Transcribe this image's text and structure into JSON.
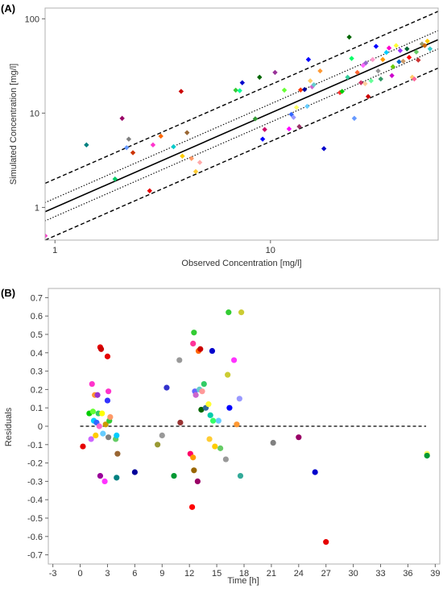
{
  "chart_data": [
    {
      "type": "scatter",
      "panel_label": "(A)",
      "xlabel": "Observed Concentration [mg/l]",
      "ylabel": "Simulated Concentration [mg/l]",
      "xscale": "log",
      "yscale": "log",
      "xlim": [
        0.9,
        60
      ],
      "ylim": [
        0.45,
        130
      ],
      "xtick_labels": [
        "1",
        "10"
      ],
      "ytick_labels": [
        "1",
        "10",
        "100"
      ],
      "xticks": [
        1,
        10
      ],
      "yticks": [
        1,
        10,
        100
      ],
      "grid": false,
      "reference_lines": [
        {
          "type": "identity",
          "factor": 1,
          "style": "solid"
        },
        {
          "type": "fold",
          "factor": 1.25,
          "style": "dotted"
        },
        {
          "type": "fold",
          "factor": 0.8,
          "style": "dotted"
        },
        {
          "type": "fold",
          "factor": 2,
          "style": "dashed"
        },
        {
          "type": "fold",
          "factor": 0.5,
          "style": "dashed"
        }
      ],
      "points": [
        {
          "x": 1.4,
          "y": 4.6,
          "color": "#008080"
        },
        {
          "x": 1.9,
          "y": 2.0,
          "color": "#00cc66"
        },
        {
          "x": 2.05,
          "y": 8.8,
          "color": "#990066"
        },
        {
          "x": 2.15,
          "y": 4.3,
          "color": "#6699ff"
        },
        {
          "x": 2.2,
          "y": 5.3,
          "color": "#808080"
        },
        {
          "x": 2.3,
          "y": 3.8,
          "color": "#cc3300"
        },
        {
          "x": 2.75,
          "y": 1.5,
          "color": "#e60000"
        },
        {
          "x": 2.85,
          "y": 4.6,
          "color": "#ff33cc"
        },
        {
          "x": 3.1,
          "y": 5.7,
          "color": "#ff6600"
        },
        {
          "x": 3.55,
          "y": 4.4,
          "color": "#00cccc"
        },
        {
          "x": 3.85,
          "y": 17.0,
          "color": "#cc0000"
        },
        {
          "x": 3.9,
          "y": 3.5,
          "color": "#ffcc00"
        },
        {
          "x": 4.1,
          "y": 6.2,
          "color": "#996633"
        },
        {
          "x": 4.3,
          "y": 3.3,
          "color": "#ff9966"
        },
        {
          "x": 4.5,
          "y": 2.4,
          "color": "#ffcc33"
        },
        {
          "x": 4.7,
          "y": 3.0,
          "color": "#ffaaaa"
        },
        {
          "x": 6.9,
          "y": 17.5,
          "color": "#33cc33"
        },
        {
          "x": 7.2,
          "y": 17.3,
          "color": "#00ff99"
        },
        {
          "x": 7.4,
          "y": 21.0,
          "color": "#0000cc"
        },
        {
          "x": 8.5,
          "y": 8.7,
          "color": "#339933"
        },
        {
          "x": 8.9,
          "y": 24.0,
          "color": "#006600"
        },
        {
          "x": 9.2,
          "y": 5.3,
          "color": "#0000ff"
        },
        {
          "x": 9.4,
          "y": 6.7,
          "color": "#cc0066"
        },
        {
          "x": 10.5,
          "y": 27.0,
          "color": "#993399"
        },
        {
          "x": 11.6,
          "y": 17.5,
          "color": "#66ff33"
        },
        {
          "x": 12.2,
          "y": 6.8,
          "color": "#ff00ff"
        },
        {
          "x": 12.5,
          "y": 9.7,
          "color": "#3366ff"
        },
        {
          "x": 12.8,
          "y": 9.0,
          "color": "#9999ff"
        },
        {
          "x": 13.2,
          "y": 11.5,
          "color": "#ffff66"
        },
        {
          "x": 13.6,
          "y": 7.2,
          "color": "#993366"
        },
        {
          "x": 13.8,
          "y": 17.6,
          "color": "#ff3300"
        },
        {
          "x": 14.4,
          "y": 17.8,
          "color": "#000099"
        },
        {
          "x": 14.8,
          "y": 11.8,
          "color": "#66ccff"
        },
        {
          "x": 15.0,
          "y": 37.0,
          "color": "#0000ff"
        },
        {
          "x": 15.3,
          "y": 22.0,
          "color": "#ffcc66"
        },
        {
          "x": 15.6,
          "y": 19.0,
          "color": "#cc66cc"
        },
        {
          "x": 15.9,
          "y": 20.0,
          "color": "#66cccc"
        },
        {
          "x": 17.0,
          "y": 28.0,
          "color": "#ff9933"
        },
        {
          "x": 17.7,
          "y": 4.2,
          "color": "#0000cc"
        },
        {
          "x": 21.0,
          "y": 16.5,
          "color": "#ff3333"
        },
        {
          "x": 21.5,
          "y": 17.0,
          "color": "#00cc00"
        },
        {
          "x": 22.8,
          "y": 24.0,
          "color": "#33cc99"
        },
        {
          "x": 23.2,
          "y": 64.0,
          "color": "#006600"
        },
        {
          "x": 23.8,
          "y": 38.0,
          "color": "#00ff66"
        },
        {
          "x": 24.5,
          "y": 8.8,
          "color": "#6699ff"
        },
        {
          "x": 25.3,
          "y": 27.0,
          "color": "#ff6633"
        },
        {
          "x": 26.3,
          "y": 21.0,
          "color": "#cc3366"
        },
        {
          "x": 26.9,
          "y": 32.0,
          "color": "#ff66ff"
        },
        {
          "x": 27.5,
          "y": 20.5,
          "color": "#ffcc99"
        },
        {
          "x": 27.7,
          "y": 34.0,
          "color": "#9966cc"
        },
        {
          "x": 28.4,
          "y": 15.0,
          "color": "#cc0000"
        },
        {
          "x": 29.3,
          "y": 22.0,
          "color": "#66ff99"
        },
        {
          "x": 29.8,
          "y": 37.0,
          "color": "#ff99cc"
        },
        {
          "x": 30.9,
          "y": 51.0,
          "color": "#0000ff"
        },
        {
          "x": 31.6,
          "y": 28.0,
          "color": "#999999"
        },
        {
          "x": 32.5,
          "y": 23.0,
          "color": "#339966"
        },
        {
          "x": 33.2,
          "y": 37.0,
          "color": "#ff9900"
        },
        {
          "x": 34.5,
          "y": 44.0,
          "color": "#00ccff"
        },
        {
          "x": 35.5,
          "y": 49.0,
          "color": "#ff00cc"
        },
        {
          "x": 36.6,
          "y": 25.0,
          "color": "#cc00cc"
        },
        {
          "x": 37.0,
          "y": 31.0,
          "color": "#66cc00"
        },
        {
          "x": 38.3,
          "y": 52.0,
          "color": "#ffff33"
        },
        {
          "x": 39.5,
          "y": 35.0,
          "color": "#0066cc"
        },
        {
          "x": 40.0,
          "y": 46.0,
          "color": "#9933ff"
        },
        {
          "x": 41.3,
          "y": 35.5,
          "color": "#cc9966"
        },
        {
          "x": 43.0,
          "y": 48.0,
          "color": "#006633"
        },
        {
          "x": 44.0,
          "y": 39.0,
          "color": "#ff0000"
        },
        {
          "x": 45.5,
          "y": 24.0,
          "color": "#ffcc66"
        },
        {
          "x": 46.5,
          "y": 23.0,
          "color": "#ff6699"
        },
        {
          "x": 47.5,
          "y": 44.5,
          "color": "#66cc66"
        },
        {
          "x": 48.5,
          "y": 36.5,
          "color": "#cc3333"
        },
        {
          "x": 50.5,
          "y": 54.0,
          "color": "#999966"
        },
        {
          "x": 52.0,
          "y": 52.0,
          "color": "#cc6600"
        },
        {
          "x": 53.5,
          "y": 58.0,
          "color": "#ffcc00"
        },
        {
          "x": 55.0,
          "y": 48.0,
          "color": "#33cccc"
        },
        {
          "x": 0.9,
          "y": 0.5,
          "color": "#ff33cc"
        }
      ]
    },
    {
      "type": "scatter",
      "panel_label": "(B)",
      "xlabel": "Time [h]",
      "ylabel": "Residuals",
      "xlim": [
        -3.5,
        39.5
      ],
      "ylim": [
        -0.75,
        0.75
      ],
      "xtick_labels": [
        "-3",
        "0",
        "3",
        "6",
        "9",
        "12",
        "15",
        "18",
        "21",
        "24",
        "27",
        "30",
        "33",
        "36",
        "39"
      ],
      "ytick_labels": [
        "0.7",
        "0.6",
        "0.5",
        "0.4",
        "0.3",
        "0.2",
        "0.1",
        "0",
        "-0.1",
        "-0.2",
        "-0.3",
        "-0.4",
        "-0.5",
        "-0.6",
        "-0.7"
      ],
      "xticks": [
        -3,
        0,
        3,
        6,
        9,
        12,
        15,
        18,
        21,
        24,
        27,
        30,
        33,
        36,
        39
      ],
      "yticks": [
        0.7,
        0.6,
        0.5,
        0.4,
        0.3,
        0.2,
        0.1,
        0,
        -0.1,
        -0.2,
        -0.3,
        -0.4,
        -0.5,
        -0.6,
        -0.7
      ],
      "grid": false,
      "reference_line": {
        "y": 0,
        "x_from": 0,
        "x_to": 38,
        "style": "dashed"
      },
      "points": [
        {
          "x": 0.3,
          "y": -0.11,
          "color": "#e60000"
        },
        {
          "x": 1.0,
          "y": 0.07,
          "color": "#00cc00"
        },
        {
          "x": 1.2,
          "y": -0.07,
          "color": "#cc66ff"
        },
        {
          "x": 1.3,
          "y": 0.23,
          "color": "#ff33cc"
        },
        {
          "x": 1.4,
          "y": 0.08,
          "color": "#66ff33"
        },
        {
          "x": 1.5,
          "y": 0.03,
          "color": "#00ccff"
        },
        {
          "x": 1.6,
          "y": 0.17,
          "color": "#ff9933"
        },
        {
          "x": 1.7,
          "y": -0.05,
          "color": "#ffcc00"
        },
        {
          "x": 1.8,
          "y": 0.02,
          "color": "#3366ff"
        },
        {
          "x": 1.9,
          "y": 0.17,
          "color": "#9933cc"
        },
        {
          "x": 2.0,
          "y": 0.07,
          "color": "#33cc66"
        },
        {
          "x": 2.1,
          "y": 0.0,
          "color": "#ff66cc"
        },
        {
          "x": 2.2,
          "y": 0.43,
          "color": "#e60000"
        },
        {
          "x": 2.3,
          "y": 0.42,
          "color": "#cc0000"
        },
        {
          "x": 2.2,
          "y": -0.27,
          "color": "#990099"
        },
        {
          "x": 2.4,
          "y": 0.07,
          "color": "#ffff00"
        },
        {
          "x": 2.5,
          "y": -0.04,
          "color": "#66ccff"
        },
        {
          "x": 2.7,
          "y": -0.3,
          "color": "#ff33ff"
        },
        {
          "x": 2.8,
          "y": 0.01,
          "color": "#cc9900"
        },
        {
          "x": 3.0,
          "y": 0.38,
          "color": "#e60000"
        },
        {
          "x": 3.0,
          "y": 0.14,
          "color": "#3333ff"
        },
        {
          "x": 3.1,
          "y": 0.19,
          "color": "#ff33cc"
        },
        {
          "x": 3.1,
          "y": -0.06,
          "color": "#808080"
        },
        {
          "x": 3.2,
          "y": 0.03,
          "color": "#33cc33"
        },
        {
          "x": 3.3,
          "y": 0.05,
          "color": "#ff9966"
        },
        {
          "x": 3.9,
          "y": -0.07,
          "color": "#66cc66"
        },
        {
          "x": 4.0,
          "y": -0.05,
          "color": "#00ccff"
        },
        {
          "x": 4.1,
          "y": -0.15,
          "color": "#996633"
        },
        {
          "x": 4.0,
          "y": -0.28,
          "color": "#008080"
        },
        {
          "x": 6.0,
          "y": -0.25,
          "color": "#000099"
        },
        {
          "x": 8.5,
          "y": -0.1,
          "color": "#999933"
        },
        {
          "x": 9.0,
          "y": -0.05,
          "color": "#999999"
        },
        {
          "x": 9.5,
          "y": 0.21,
          "color": "#3333cc"
        },
        {
          "x": 10.3,
          "y": -0.27,
          "color": "#009933"
        },
        {
          "x": 10.9,
          "y": 0.36,
          "color": "#999999"
        },
        {
          "x": 11.0,
          "y": 0.02,
          "color": "#993333"
        },
        {
          "x": 12.1,
          "y": -0.15,
          "color": "#ff0066"
        },
        {
          "x": 12.3,
          "y": -0.44,
          "color": "#ff0000"
        },
        {
          "x": 12.4,
          "y": 0.45,
          "color": "#ff3399"
        },
        {
          "x": 12.5,
          "y": 0.51,
          "color": "#33cc33"
        },
        {
          "x": 12.4,
          "y": -0.17,
          "color": "#ff9900"
        },
        {
          "x": 12.5,
          "y": -0.24,
          "color": "#996600"
        },
        {
          "x": 12.6,
          "y": 0.19,
          "color": "#6666ff"
        },
        {
          "x": 12.7,
          "y": 0.17,
          "color": "#cc66cc"
        },
        {
          "x": 12.9,
          "y": -0.3,
          "color": "#990066"
        },
        {
          "x": 13.0,
          "y": 0.41,
          "color": "#ff6600"
        },
        {
          "x": 13.1,
          "y": 0.2,
          "color": "#66cccc"
        },
        {
          "x": 13.2,
          "y": 0.42,
          "color": "#cc0000"
        },
        {
          "x": 13.3,
          "y": 0.09,
          "color": "#006600"
        },
        {
          "x": 13.4,
          "y": 0.19,
          "color": "#ff9999"
        },
        {
          "x": 13.6,
          "y": 0.23,
          "color": "#33cc66"
        },
        {
          "x": 13.8,
          "y": 0.1,
          "color": "#336699"
        },
        {
          "x": 14.1,
          "y": 0.12,
          "color": "#ffff33"
        },
        {
          "x": 14.2,
          "y": -0.07,
          "color": "#ffcc33"
        },
        {
          "x": 14.3,
          "y": 0.06,
          "color": "#00ccaa"
        },
        {
          "x": 14.5,
          "y": 0.41,
          "color": "#0000cc"
        },
        {
          "x": 14.6,
          "y": 0.03,
          "color": "#33ff66"
        },
        {
          "x": 14.8,
          "y": -0.11,
          "color": "#ffcc00"
        },
        {
          "x": 15.2,
          "y": 0.03,
          "color": "#66ccff"
        },
        {
          "x": 15.4,
          "y": -0.12,
          "color": "#66cc66"
        },
        {
          "x": 16.0,
          "y": -0.18,
          "color": "#999999"
        },
        {
          "x": 16.2,
          "y": 0.28,
          "color": "#cccc33"
        },
        {
          "x": 16.3,
          "y": 0.62,
          "color": "#33cc33"
        },
        {
          "x": 16.4,
          "y": 0.1,
          "color": "#0000ff"
        },
        {
          "x": 16.9,
          "y": 0.36,
          "color": "#ff33ff"
        },
        {
          "x": 17.2,
          "y": 0.01,
          "color": "#ff9933"
        },
        {
          "x": 17.5,
          "y": 0.15,
          "color": "#9999ff"
        },
        {
          "x": 17.6,
          "y": -0.27,
          "color": "#33aa99"
        },
        {
          "x": 17.7,
          "y": 0.62,
          "color": "#cccc33"
        },
        {
          "x": 21.2,
          "y": -0.09,
          "color": "#808080"
        },
        {
          "x": 24.0,
          "y": -0.06,
          "color": "#990066"
        },
        {
          "x": 25.8,
          "y": -0.25,
          "color": "#0000cc"
        },
        {
          "x": 27.0,
          "y": -0.63,
          "color": "#e60000"
        },
        {
          "x": 38.1,
          "y": -0.15,
          "color": "#ffff66"
        },
        {
          "x": 38.1,
          "y": -0.16,
          "color": "#009933"
        }
      ]
    }
  ]
}
